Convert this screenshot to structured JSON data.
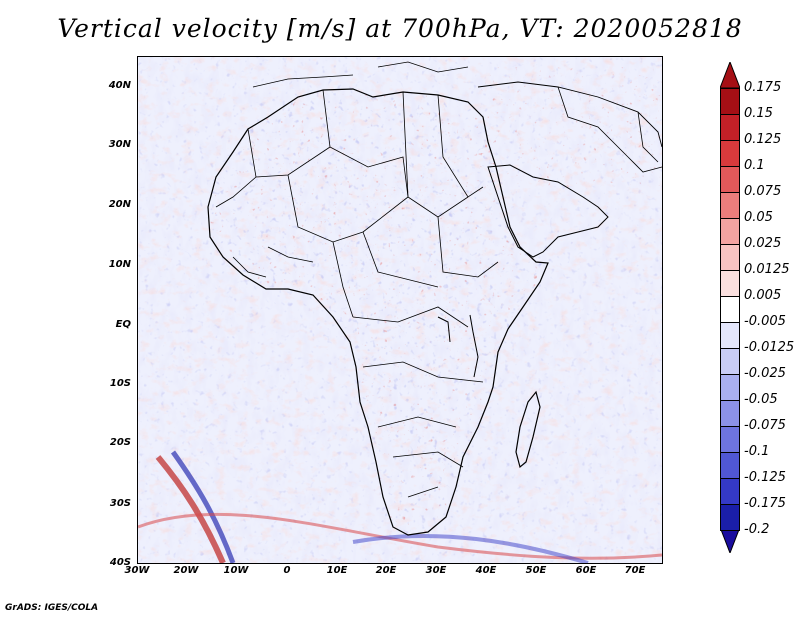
{
  "title": "Vertical velocity [m/s] at 700hPa, VT: 2020052818",
  "credit": "GrADS: IGES/COLA",
  "lat_labels": [
    "40N",
    "30N",
    "20N",
    "10N",
    "EQ",
    "10S",
    "20S",
    "30S",
    "40S"
  ],
  "lon_labels": [
    "30W",
    "20W",
    "10W",
    "0",
    "10E",
    "20E",
    "30E",
    "40E",
    "50E",
    "60E",
    "70E"
  ],
  "colorbar": {
    "labels": [
      "0.175",
      "0.15",
      "0.125",
      "0.1",
      "0.075",
      "0.05",
      "0.025",
      "0.0125",
      "0.005",
      "-0.005",
      "-0.0125",
      "-0.025",
      "-0.05",
      "-0.075",
      "-0.1",
      "-0.125",
      "-0.175",
      "-0.2"
    ],
    "colors": [
      "#a50f15",
      "#c42027",
      "#d93a3c",
      "#e3595a",
      "#ec7d7c",
      "#f3a3a1",
      "#f7c4c2",
      "#fbe0df",
      "#ffffff",
      "#e4e6fb",
      "#c9cdf6",
      "#aab0f0",
      "#8c92e8",
      "#6e74df",
      "#5057d4",
      "#3439c6",
      "#1a1ea8"
    ],
    "top_arrow_color": "#a50f15",
    "bottom_arrow_color": "#1a0d9e"
  },
  "colors": {
    "positive": "#cc2a2a",
    "negative": "#3a3ec8",
    "land_outline": "#000000"
  }
}
